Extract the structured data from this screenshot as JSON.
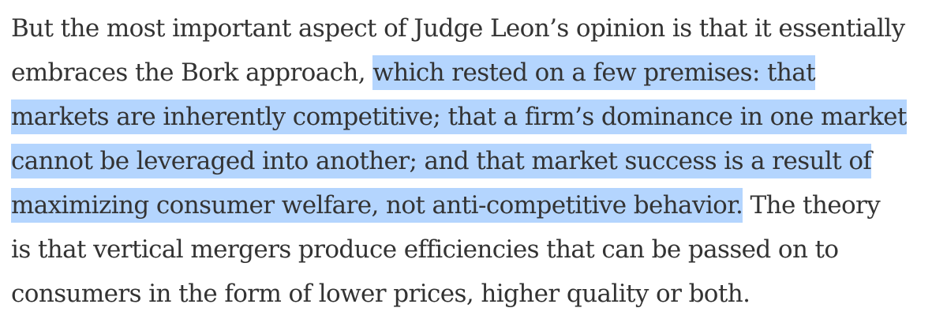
{
  "paragraph": {
    "lines": [
      {
        "before": "But the most important aspect of Judge Leon’s opinion is that it essentially",
        "highlight": "",
        "after": ""
      },
      {
        "before": "embraces the Bork approach, ",
        "highlight": "which rested on a few premises: that",
        "after": ""
      },
      {
        "before": "",
        "highlight": "markets are inherently competitive; that a firm’s dominance in one market",
        "after": ""
      },
      {
        "before": "",
        "highlight": "cannot be leveraged into another; and that market success is a result of",
        "after": ""
      },
      {
        "before": "",
        "highlight": "maximizing consumer welfare, not anti-competitive behavior.",
        "after": " The theory"
      },
      {
        "before": "is that vertical mergers produce efficiencies that can be passed on to",
        "highlight": "",
        "after": ""
      },
      {
        "before": "consumers in the form of lower prices, higher quality or both.",
        "highlight": "",
        "after": ""
      }
    ]
  },
  "colors": {
    "text": "#333333",
    "selection_highlight": "#b4d5fe",
    "background": "#ffffff"
  }
}
